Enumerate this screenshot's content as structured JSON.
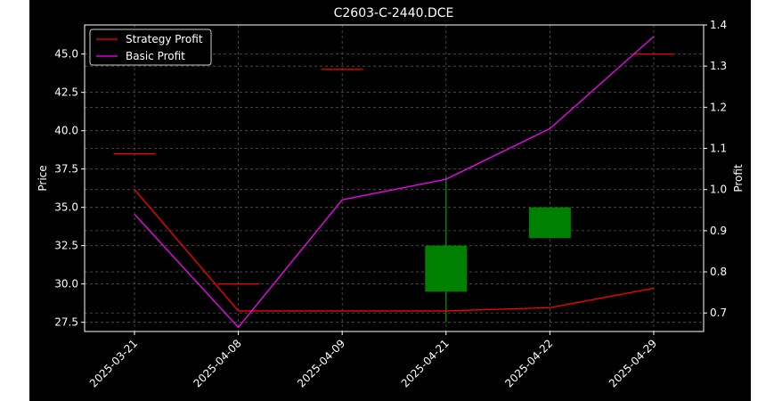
{
  "chart_data": {
    "type": "candlestick-with-lines",
    "title": "C2603-C-2440.DCE",
    "xlabel": "",
    "ylabel": "Price",
    "ylabel_right": "Profit",
    "categories": [
      "2025-03-21",
      "2025-04-08",
      "2025-04-09",
      "2025-04-21",
      "2025-04-22",
      "2025-04-29"
    ],
    "ylim": [
      26.9,
      46.9
    ],
    "ylim_right": [
      0.655,
      1.4
    ],
    "yticks": [
      27.5,
      30.0,
      32.5,
      35.0,
      37.5,
      40.0,
      42.5,
      45.0
    ],
    "yticks_right": [
      0.7,
      0.8,
      0.9,
      1.0,
      1.1,
      1.2,
      1.3,
      1.4
    ],
    "grid": true,
    "legend_position": "upper-left",
    "candles": [
      {
        "date": "2025-03-21",
        "open": 38.5,
        "close": 38.5,
        "high": 38.5,
        "low": 38.5
      },
      {
        "date": "2025-04-08",
        "open": 30.0,
        "close": 30.0,
        "high": 30.0,
        "low": 30.0
      },
      {
        "date": "2025-04-09",
        "open": 44.0,
        "close": 44.0,
        "high": 44.0,
        "low": 44.0
      },
      {
        "date": "2025-04-21",
        "open": 29.5,
        "close": 32.5,
        "high": 37.0,
        "low": 27.5
      },
      {
        "date": "2025-04-22",
        "open": 33.0,
        "close": 35.0,
        "high": 35.0,
        "low": 33.0
      },
      {
        "date": "2025-04-29",
        "open": 45.0,
        "close": 45.0,
        "high": 45.0,
        "low": 45.0
      }
    ],
    "series": [
      {
        "name": "Strategy Profit",
        "axis": "right",
        "color": "#ff0000",
        "values": [
          1.0,
          0.705,
          0.705,
          0.705,
          0.713,
          0.76
        ]
      },
      {
        "name": "Basic Profit",
        "axis": "right",
        "color": "#ff00ff",
        "values": [
          0.94,
          0.665,
          0.975,
          1.025,
          1.148,
          1.372
        ]
      }
    ],
    "colors": {
      "background": "#000000",
      "page": "#ffffff",
      "axes": "#ffffff",
      "text": "#ffffff",
      "grid": "#555555",
      "up_candle": "#008000",
      "flat_candle": "#ff0000"
    }
  }
}
